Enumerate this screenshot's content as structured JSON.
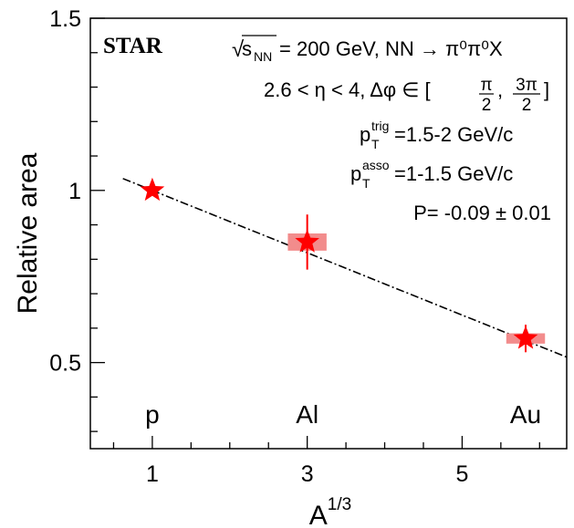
{
  "chart_data": {
    "type": "scatter",
    "brand": "STAR",
    "energy": "= 200 GeV, NN → π⁰π⁰X",
    "energy_sqrt_symbol": "√",
    "energy_var": "s",
    "energy_sub": "NN",
    "eta_line": "2.6 < η < 4, Δφ ∈ [",
    "phi_range": {
      "lo_num": "π",
      "lo_den": "2",
      "comma": ",",
      "hi_num": "3π",
      "hi_den": "2",
      "close": "]"
    },
    "ptrig": {
      "p": "p",
      "sub": "T",
      "sup": "trig",
      "value": "=1.5-2 GeV/c"
    },
    "passo": {
      "p": "p",
      "sub": "T",
      "sup": "asso",
      "value": "=1-1.5 GeV/c"
    },
    "fit_label": "P= -0.09 ± 0.01",
    "xlabel": "A",
    "xlabel_sup": "1/3",
    "ylabel": "Relative area",
    "xlim": [
      0.2,
      6.35
    ],
    "ylim": [
      0.25,
      1.5
    ],
    "xticks": [
      1,
      3,
      5
    ],
    "xminor": [
      0.5,
      1,
      1.5,
      2,
      2.5,
      3,
      3.5,
      4,
      4.5,
      5,
      5.5,
      6
    ],
    "yticks": [
      0.5,
      1,
      1.5
    ],
    "yminor": [
      0.3,
      0.4,
      0.5,
      0.6,
      0.7,
      0.8,
      0.9,
      1.0,
      1.1,
      1.2,
      1.3,
      1.4,
      1.5
    ],
    "points": [
      {
        "label": "p",
        "x": 1.0,
        "y": 1.0,
        "stat_err": 0.0,
        "sys_x": 0.0,
        "sys_y": 0.0
      },
      {
        "label": "Al",
        "x": 3.0,
        "y": 0.85,
        "stat_err": 0.08,
        "sys_x": 0.25,
        "sys_y": 0.025
      },
      {
        "label": "Au",
        "x": 5.82,
        "y": 0.57,
        "stat_err": 0.04,
        "sys_x": 0.25,
        "sys_y": 0.015
      }
    ],
    "nucleus_label_y": 0.35,
    "fit": {
      "x_start": 0.62,
      "x_end": 6.35,
      "y_at_1": 1.0,
      "slope_per_x": -0.0905
    },
    "colors": {
      "marker": "#ff0000",
      "sys_box": "#f28c8c",
      "fit": "#000000"
    }
  }
}
